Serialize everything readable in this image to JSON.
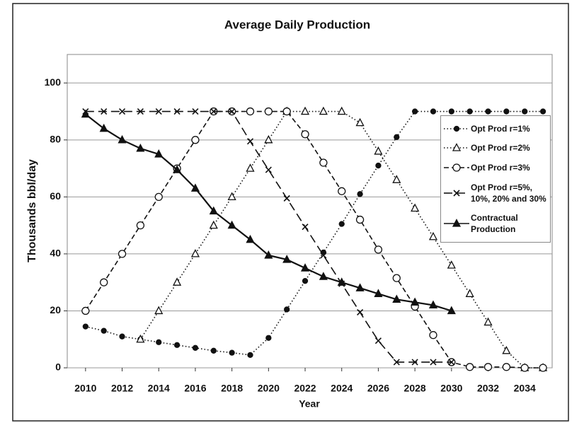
{
  "chart_data": {
    "type": "line",
    "title": "Average Daily Production",
    "xlabel": "Year",
    "ylabel": "Thousands bbl/day",
    "x": [
      2010,
      2011,
      2012,
      2013,
      2014,
      2015,
      2016,
      2017,
      2018,
      2019,
      2020,
      2021,
      2022,
      2023,
      2024,
      2025,
      2026,
      2027,
      2028,
      2029,
      2030,
      2031,
      2032,
      2033,
      2034,
      2035
    ],
    "series": [
      {
        "name": "Opt Prod r=1%",
        "color": "#111111",
        "marker": "circle-filled",
        "dash": "dotted",
        "values": [
          14.5,
          13,
          11,
          10,
          9,
          8,
          7,
          6,
          5.3,
          4.5,
          10.5,
          20.5,
          30.5,
          40.5,
          50.5,
          61,
          71,
          81,
          90,
          90,
          90,
          90,
          90,
          90,
          90,
          90
        ]
      },
      {
        "name": "Opt Prod r=2%",
        "color": "#111111",
        "marker": "triangle-open",
        "dash": "dotted",
        "values": [
          null,
          null,
          null,
          10,
          20,
          30,
          40,
          50,
          60,
          70,
          80,
          90,
          90,
          90,
          90,
          86,
          76,
          66,
          56,
          46,
          36,
          26,
          16,
          6,
          0,
          0
        ]
      },
      {
        "name": "Opt Prod r=3%",
        "color": "#111111",
        "marker": "circle-open",
        "dash": "dashed",
        "values": [
          20,
          30,
          40,
          50,
          60,
          70,
          80,
          90,
          90,
          90,
          90,
          90,
          82,
          72,
          62,
          52,
          41.5,
          31.5,
          21.5,
          11.5,
          2,
          0.3,
          0.3,
          0.3,
          0,
          0
        ]
      },
      {
        "name": "Opt Prod r=5%, 10%, 20% and 30%",
        "color": "#111111",
        "marker": "x",
        "dash": "longdash",
        "values": [
          90,
          90,
          90,
          90,
          90,
          90,
          90,
          90,
          90,
          79.5,
          69.5,
          59.5,
          49.5,
          39.5,
          29.5,
          19.5,
          9.5,
          2,
          2,
          2,
          2,
          null,
          null,
          null,
          null,
          null
        ]
      },
      {
        "name": "Contractual Production",
        "color": "#111111",
        "marker": "triangle-filled",
        "dash": "solid",
        "values": [
          89,
          84,
          80,
          77,
          75,
          69.5,
          63,
          55,
          50,
          45,
          39.5,
          38,
          35,
          32,
          30,
          28,
          26,
          24,
          23,
          22,
          20,
          null,
          null,
          null,
          null,
          null
        ]
      }
    ],
    "xlim": [
      2009,
      2035.5
    ],
    "xticks": [
      2010,
      2012,
      2014,
      2016,
      2018,
      2020,
      2022,
      2024,
      2026,
      2028,
      2030,
      2032,
      2034
    ],
    "ylim": [
      0,
      110
    ],
    "yticks": [
      0,
      20,
      40,
      60,
      80,
      100
    ],
    "grid": true,
    "legend": "right"
  }
}
